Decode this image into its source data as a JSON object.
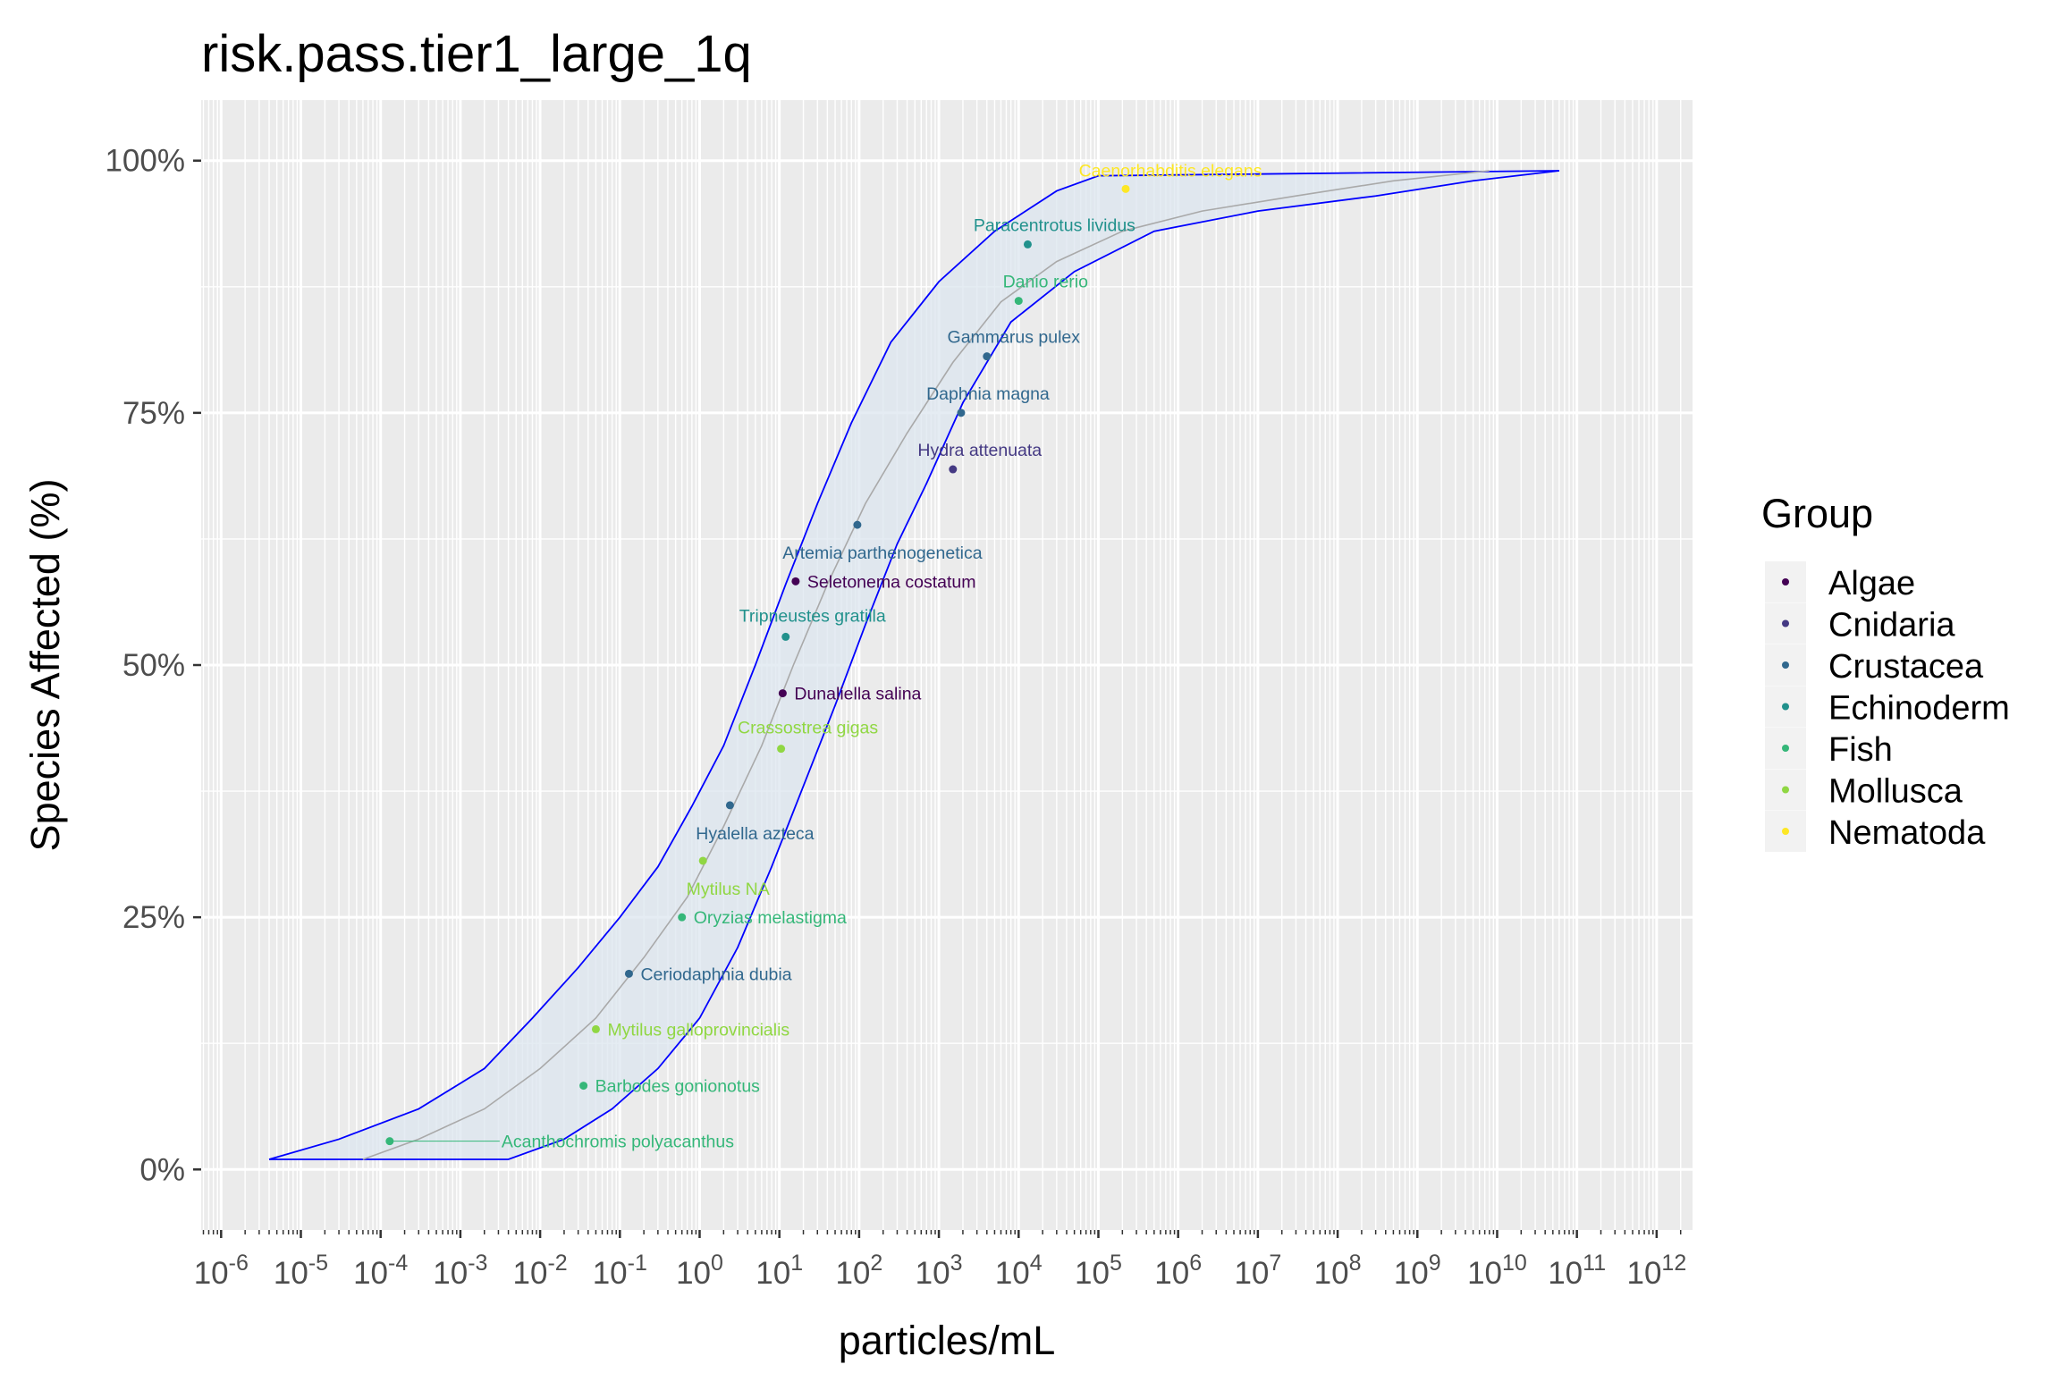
{
  "chart_data": {
    "type": "scatter",
    "title": "risk.pass.tier1_large_1q",
    "xlabel": "particles/mL",
    "ylabel": "Species Affected (%)",
    "x_scale": "log10",
    "xlim": [
      1e-06,
      1000000000000.0
    ],
    "ylim": [
      0,
      100
    ],
    "x_ticks": [
      {
        "base": "10",
        "exp": "-6"
      },
      {
        "base": "10",
        "exp": "-5"
      },
      {
        "base": "10",
        "exp": "-4"
      },
      {
        "base": "10",
        "exp": "-3"
      },
      {
        "base": "10",
        "exp": "-2"
      },
      {
        "base": "10",
        "exp": "-1"
      },
      {
        "base": "10",
        "exp": "0"
      },
      {
        "base": "10",
        "exp": "1"
      },
      {
        "base": "10",
        "exp": "2"
      },
      {
        "base": "10",
        "exp": "3"
      },
      {
        "base": "10",
        "exp": "4"
      },
      {
        "base": "10",
        "exp": "5"
      },
      {
        "base": "10",
        "exp": "6"
      },
      {
        "base": "10",
        "exp": "7"
      },
      {
        "base": "10",
        "exp": "8"
      },
      {
        "base": "10",
        "exp": "9"
      },
      {
        "base": "10",
        "exp": "10"
      },
      {
        "base": "10",
        "exp": "11"
      },
      {
        "base": "10",
        "exp": "12"
      }
    ],
    "y_ticks": [
      {
        "value": 0,
        "label": "0%"
      },
      {
        "value": 25,
        "label": "25%"
      },
      {
        "value": 50,
        "label": "50%"
      },
      {
        "value": 75,
        "label": "75%"
      },
      {
        "value": 100,
        "label": "100%"
      }
    ],
    "grid": true,
    "legend": {
      "title": "Group",
      "position": "right",
      "entries": [
        {
          "name": "Algae",
          "color": "#440154"
        },
        {
          "name": "Cnidaria",
          "color": "#443983"
        },
        {
          "name": "Crustacea",
          "color": "#31688e"
        },
        {
          "name": "Echinoderm",
          "color": "#21918c"
        },
        {
          "name": "Fish",
          "color": "#35b779"
        },
        {
          "name": "Mollusca",
          "color": "#90d743"
        },
        {
          "name": "Nematoda",
          "color": "#fde725"
        }
      ]
    },
    "points": [
      {
        "species": "Acanthochromis polyacanthus",
        "group": "Fish",
        "x": 0.00013,
        "y": 2.8
      },
      {
        "species": "Barbodes gonionotus",
        "group": "Fish",
        "x": 0.035,
        "y": 8.3
      },
      {
        "species": "Mytilus galloprovincialis",
        "group": "Mollusca",
        "x": 0.05,
        "y": 13.9
      },
      {
        "species": "Ceriodaphnia dubia",
        "group": "Crustacea",
        "x": 0.13,
        "y": 19.4
      },
      {
        "species": "Oryzias melastigma",
        "group": "Fish",
        "x": 0.6,
        "y": 25.0
      },
      {
        "species": "Mytilus NA",
        "group": "Mollusca",
        "x": 1.1,
        "y": 30.6
      },
      {
        "species": "Hyalella azteca",
        "group": "Crustacea",
        "x": 2.4,
        "y": 36.1
      },
      {
        "species": "Crassostrea gigas",
        "group": "Mollusca",
        "x": 10.5,
        "y": 41.7
      },
      {
        "species": "Dunaliella salina",
        "group": "Algae",
        "x": 11,
        "y": 47.2
      },
      {
        "species": "Tripneustes gratilla",
        "group": "Echinoderm",
        "x": 12,
        "y": 52.8
      },
      {
        "species": "Seletonema costatum",
        "group": "Algae",
        "x": 16,
        "y": 58.3
      },
      {
        "species": "Artemia parthenogenetica",
        "group": "Crustacea",
        "x": 95,
        "y": 63.9
      },
      {
        "species": "Hydra attenuata",
        "group": "Cnidaria",
        "x": 1500,
        "y": 69.4
      },
      {
        "species": "Daphnia magna",
        "group": "Crustacea",
        "x": 1900,
        "y": 75.0
      },
      {
        "species": "Gammarus pulex",
        "group": "Crustacea",
        "x": 4000,
        "y": 80.6
      },
      {
        "species": "Danio rerio",
        "group": "Fish",
        "x": 10000,
        "y": 86.1
      },
      {
        "species": "Paracentrotus lividus",
        "group": "Echinoderm",
        "x": 13000,
        "y": 91.7
      },
      {
        "species": "Caenorhabditis elegans",
        "group": "Nematoda",
        "x": 220000,
        "y": 97.2
      }
    ],
    "fit_curve": [
      [
        6e-05,
        1
      ],
      [
        0.0003,
        3
      ],
      [
        0.002,
        6
      ],
      [
        0.01,
        10
      ],
      [
        0.05,
        15
      ],
      [
        0.2,
        21
      ],
      [
        0.7,
        27
      ],
      [
        2,
        34
      ],
      [
        6,
        42
      ],
      [
        15,
        50
      ],
      [
        40,
        58
      ],
      [
        120,
        66
      ],
      [
        400,
        73
      ],
      [
        1500,
        80
      ],
      [
        6000,
        86
      ],
      [
        30000,
        90
      ],
      [
        200000,
        93
      ],
      [
        2000000,
        95
      ],
      [
        30000000,
        96.5
      ],
      [
        500000000,
        98
      ],
      [
        8000000000,
        99
      ]
    ],
    "band_upper": [
      [
        4e-06,
        1
      ],
      [
        3e-05,
        3
      ],
      [
        0.0003,
        6
      ],
      [
        0.002,
        10
      ],
      [
        0.008,
        15
      ],
      [
        0.03,
        20
      ],
      [
        0.1,
        25
      ],
      [
        0.3,
        30
      ],
      [
        0.8,
        36
      ],
      [
        2,
        42
      ],
      [
        5,
        50
      ],
      [
        12,
        58
      ],
      [
        30,
        66
      ],
      [
        80,
        74
      ],
      [
        250,
        82
      ],
      [
        1000,
        88
      ],
      [
        5000,
        93
      ],
      [
        30000,
        97
      ],
      [
        100000,
        98.5
      ],
      [
        60000000000,
        99
      ]
    ],
    "band_lower": [
      [
        4e-06,
        1
      ],
      [
        0.004,
        1
      ],
      [
        0.02,
        3
      ],
      [
        0.08,
        6
      ],
      [
        0.3,
        10
      ],
      [
        1,
        15
      ],
      [
        3,
        22
      ],
      [
        8,
        30
      ],
      [
        20,
        38
      ],
      [
        50,
        46
      ],
      [
        120,
        54
      ],
      [
        300,
        62
      ],
      [
        700,
        68
      ],
      [
        2000,
        76
      ],
      [
        8000,
        84
      ],
      [
        50000,
        89
      ],
      [
        500000,
        93
      ],
      [
        10000000,
        95
      ],
      [
        300000000,
        96.5
      ],
      [
        5000000000,
        98
      ],
      [
        60000000000,
        99
      ]
    ]
  }
}
